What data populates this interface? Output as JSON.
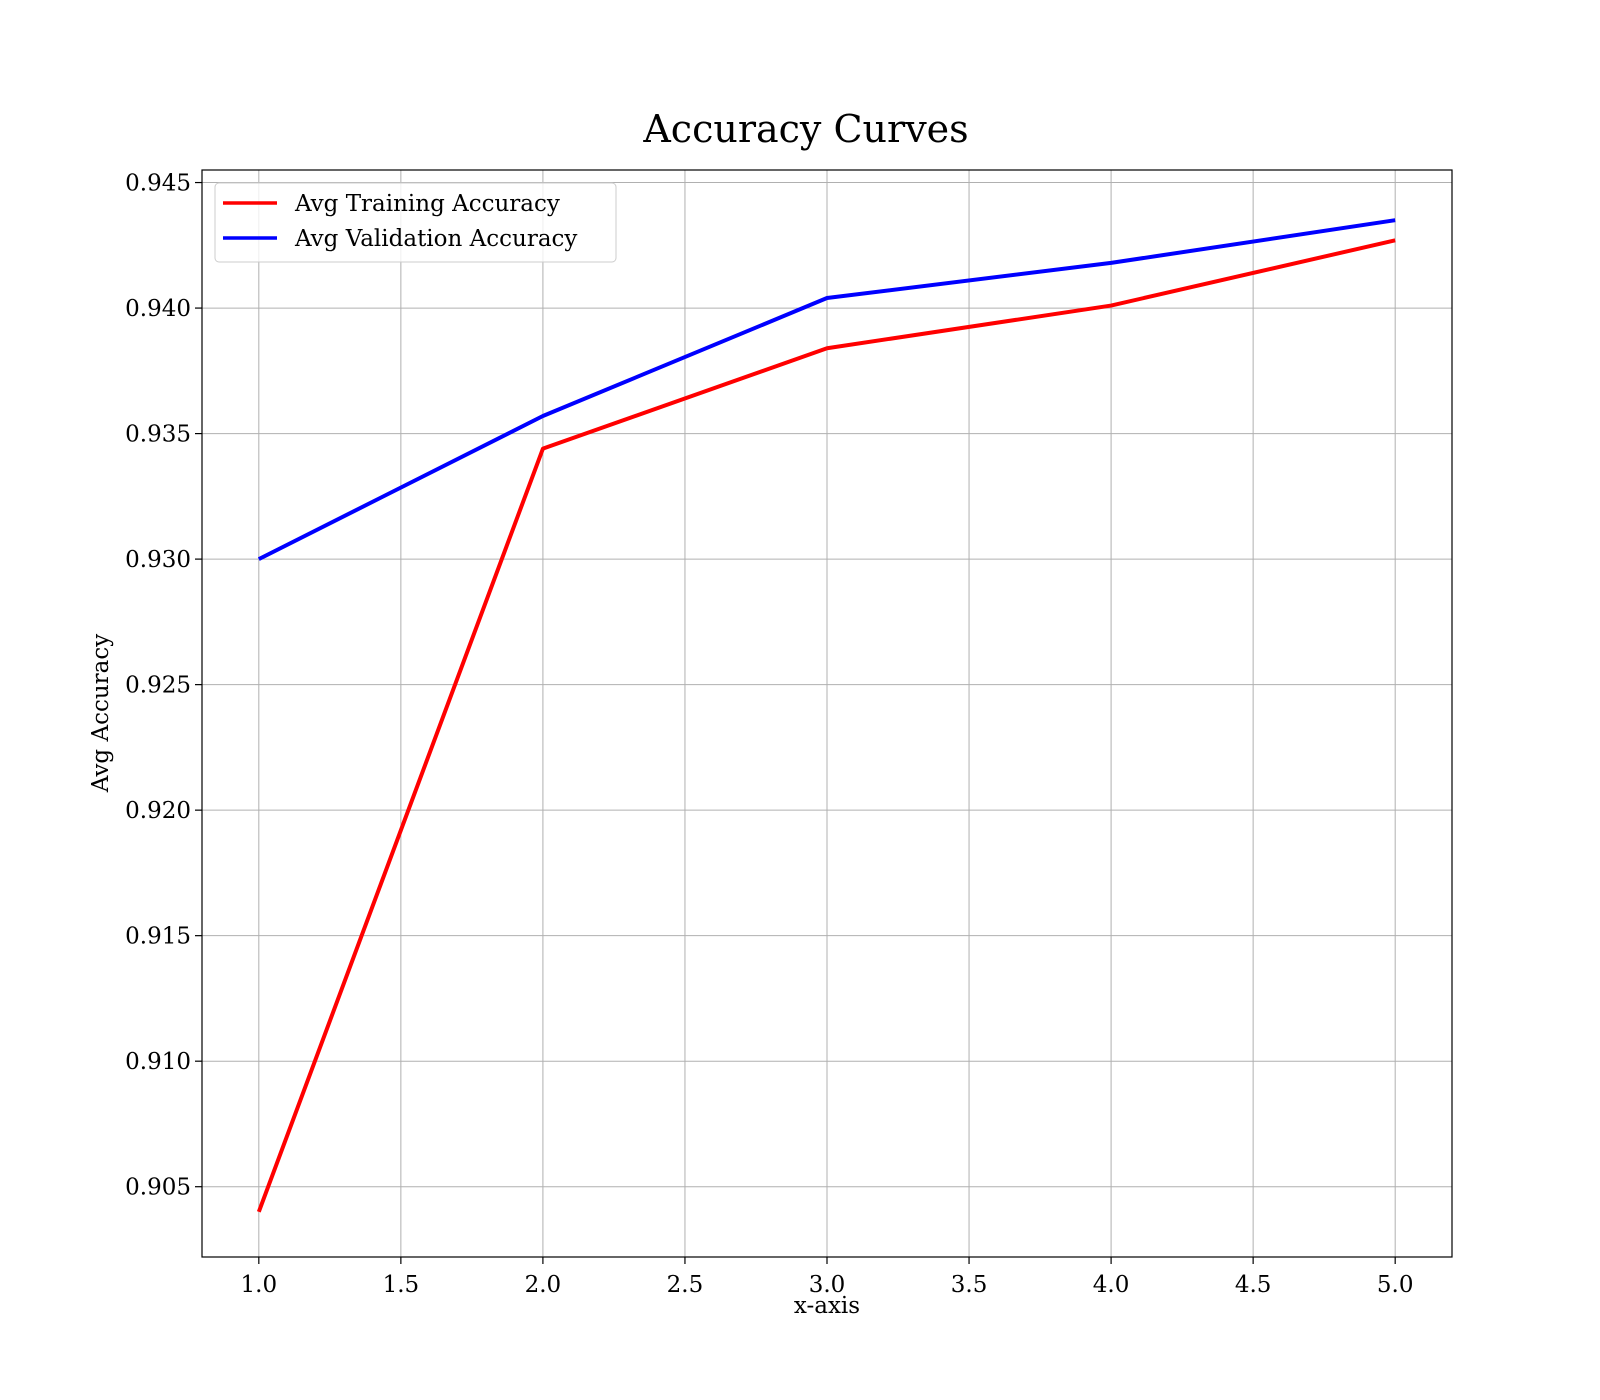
{
  "chart_data": {
    "type": "line",
    "title": "Accuracy Curves",
    "xlabel": "x-axis",
    "ylabel": "Avg Accuracy",
    "x": [
      1.0,
      2.0,
      3.0,
      4.0,
      5.0
    ],
    "xlim": [
      0.8,
      5.2
    ],
    "ylim": [
      0.9022,
      0.9455
    ],
    "x_ticks": [
      "1.0",
      "1.5",
      "2.0",
      "2.5",
      "3.0",
      "3.5",
      "4.0",
      "4.5",
      "5.0"
    ],
    "y_ticks": [
      "0.905",
      "0.910",
      "0.915",
      "0.920",
      "0.925",
      "0.930",
      "0.935",
      "0.940",
      "0.945"
    ],
    "grid": true,
    "legend_position": "top-left",
    "series": [
      {
        "name": "Avg Training Accuracy",
        "color": "#ff0000",
        "values": [
          0.904,
          0.9344,
          0.9384,
          0.9401,
          0.9427
        ]
      },
      {
        "name": "Avg Validation Accuracy",
        "color": "#0000ff",
        "values": [
          0.93,
          0.9357,
          0.9404,
          0.9418,
          0.9435
        ]
      }
    ]
  }
}
